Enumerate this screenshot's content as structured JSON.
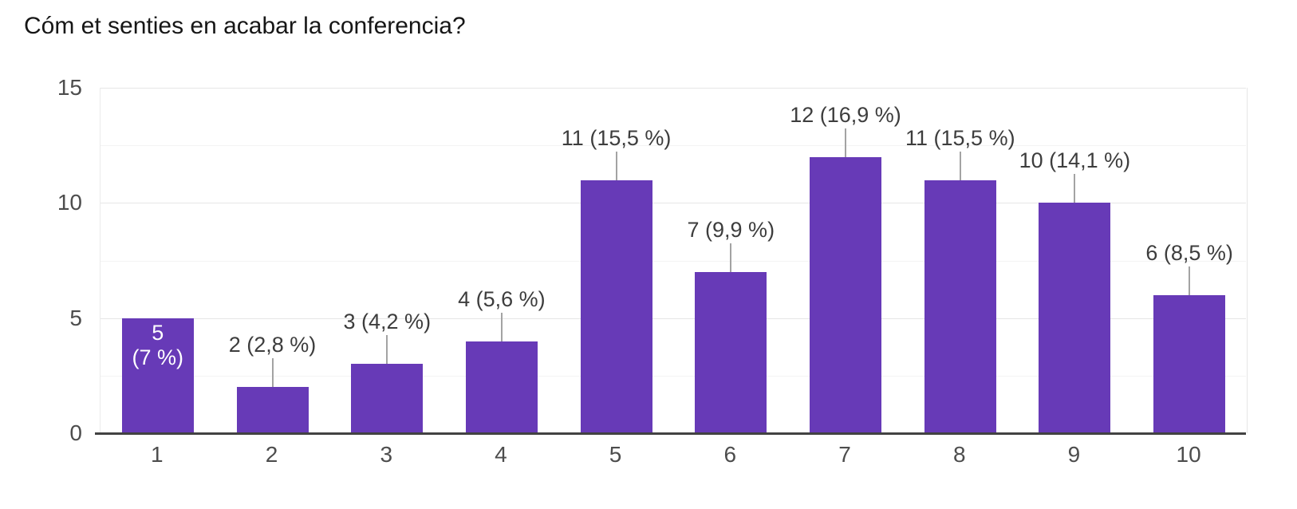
{
  "chart_data": {
    "type": "bar",
    "title": "Cóm et senties en acabar la conferencia?",
    "categories": [
      "1",
      "2",
      "3",
      "4",
      "5",
      "6",
      "7",
      "8",
      "9",
      "10"
    ],
    "values": [
      5,
      2,
      3,
      4,
      11,
      7,
      12,
      11,
      10,
      6
    ],
    "annotations": [
      {
        "text": "5 (7 %)",
        "lines": [
          "5",
          "(7 %)"
        ],
        "placement": "inside"
      },
      {
        "text": "2 (2,8 %)",
        "placement": "above"
      },
      {
        "text": "3 (4,2 %)",
        "placement": "above"
      },
      {
        "text": "4 (5,6 %)",
        "placement": "above"
      },
      {
        "text": "11 (15,5 %)",
        "placement": "above"
      },
      {
        "text": "7 (9,9 %)",
        "placement": "above"
      },
      {
        "text": "12 (16,9 %)",
        "placement": "above"
      },
      {
        "text": "11 (15,5 %)",
        "placement": "above"
      },
      {
        "text": "10 (14,1 %)",
        "placement": "above"
      },
      {
        "text": "6 (8,5 %)",
        "placement": "above"
      }
    ],
    "xlabel": "",
    "ylabel": "",
    "ylim": [
      0,
      15
    ],
    "yticks": [
      0,
      5,
      10,
      15
    ],
    "minor_yticks": [
      2.5,
      7.5,
      12.5
    ],
    "grid": "horizontal",
    "legend": "none",
    "colors": {
      "bar": "#673ab7",
      "bar_label_inside": "#ffffff",
      "annotation_text": "#3d3d3d",
      "axis_tick_text": "#4d4d4d",
      "gridline_major": "#e6e6e6",
      "gridline_minor": "#f4f4f4",
      "baseline": "#424242",
      "leader_stem": "#a3a3a3",
      "background": "#ffffff",
      "title_text": "#161616"
    }
  }
}
